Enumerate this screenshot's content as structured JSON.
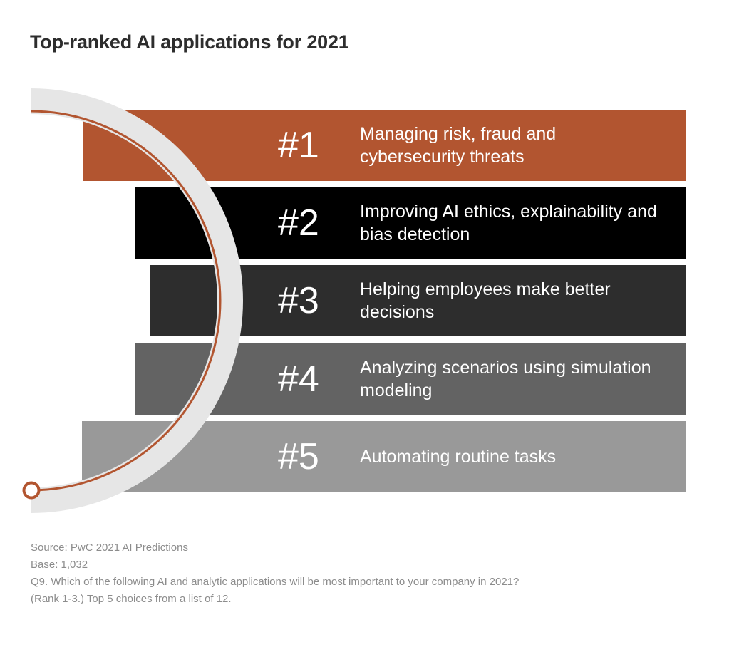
{
  "title": "Top-ranked AI applications for 2021",
  "items": [
    {
      "rank": "#1",
      "label": "Managing risk, fraud and cybersecurity threats",
      "color": "#b25530"
    },
    {
      "rank": "#2",
      "label": "Improving AI ethics, explainability and bias detection",
      "color": "#000000"
    },
    {
      "rank": "#3",
      "label": "Helping employees make better decisions",
      "color": "#2d2d2d"
    },
    {
      "rank": "#4",
      "label": "Analyzing scenarios using simulation modeling",
      "color": "#636363"
    },
    {
      "rank": "#5",
      "label": "Automating routine tasks",
      "color": "#999999"
    }
  ],
  "footer": {
    "source": "Source: PwC 2021 AI Predictions",
    "base": "Base: 1,032",
    "question_line1": "Q9. Which of the following AI and analytic applications will be most important to your company in 2021?",
    "question_line2": "(Rank 1-3.) Top 5 choices from a list of 12."
  },
  "colors": {
    "accent": "#b25530",
    "ring": "#e6e6e6"
  }
}
